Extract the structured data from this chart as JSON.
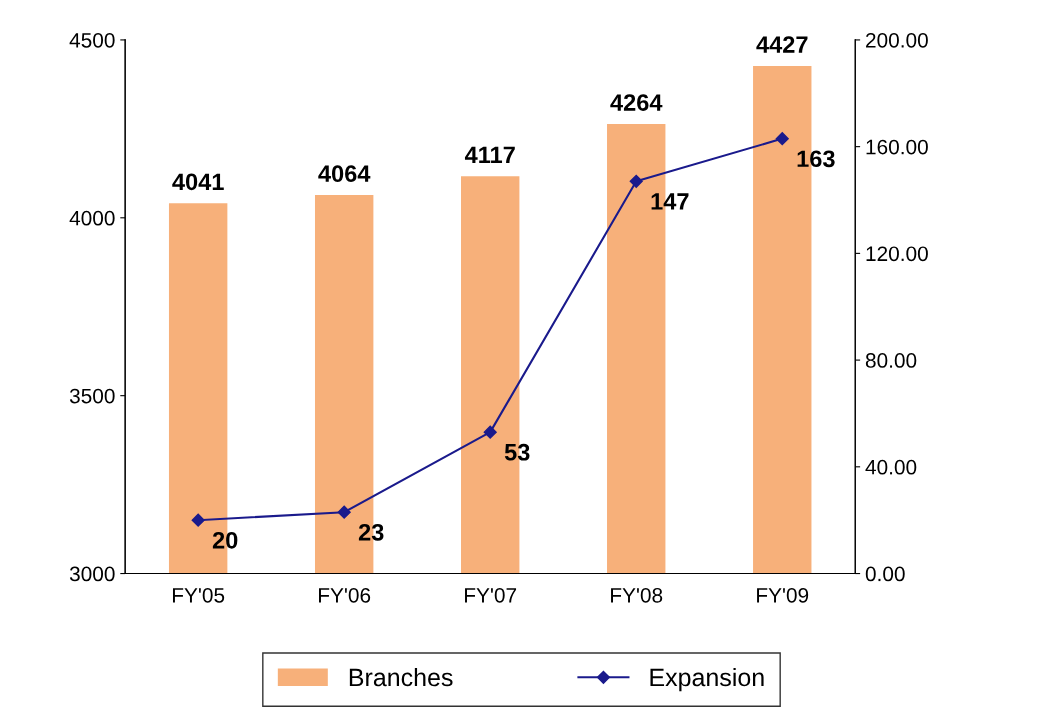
{
  "chart_data": {
    "type": "bar",
    "categories": [
      "FY'05",
      "FY'06",
      "FY'07",
      "FY'08",
      "FY'09"
    ],
    "series": [
      {
        "name": "Branches",
        "color": "#f7b07a",
        "values": [
          4041,
          4064,
          4117,
          4264,
          4427
        ]
      },
      {
        "name": "Expansion",
        "type": "line",
        "axis": "y2",
        "color": "#1a1a8c",
        "values": [
          20,
          23,
          53,
          147,
          163
        ]
      }
    ],
    "ylim": [
      3000,
      4500
    ],
    "yticks": [
      3000,
      3500,
      4000,
      4500
    ],
    "y2lim": [
      0,
      200
    ],
    "y2ticks": [
      {
        "value": 0,
        "label": "0.00"
      },
      {
        "value": 40,
        "label": "40.00"
      },
      {
        "value": 80,
        "label": "80.00"
      },
      {
        "value": 120,
        "label": "120.00"
      },
      {
        "value": 160,
        "label": "160.00"
      },
      {
        "value": 200,
        "label": "200.00"
      }
    ],
    "data_labels": true,
    "marker": "diamond",
    "grid": false,
    "legend": "bottom"
  }
}
